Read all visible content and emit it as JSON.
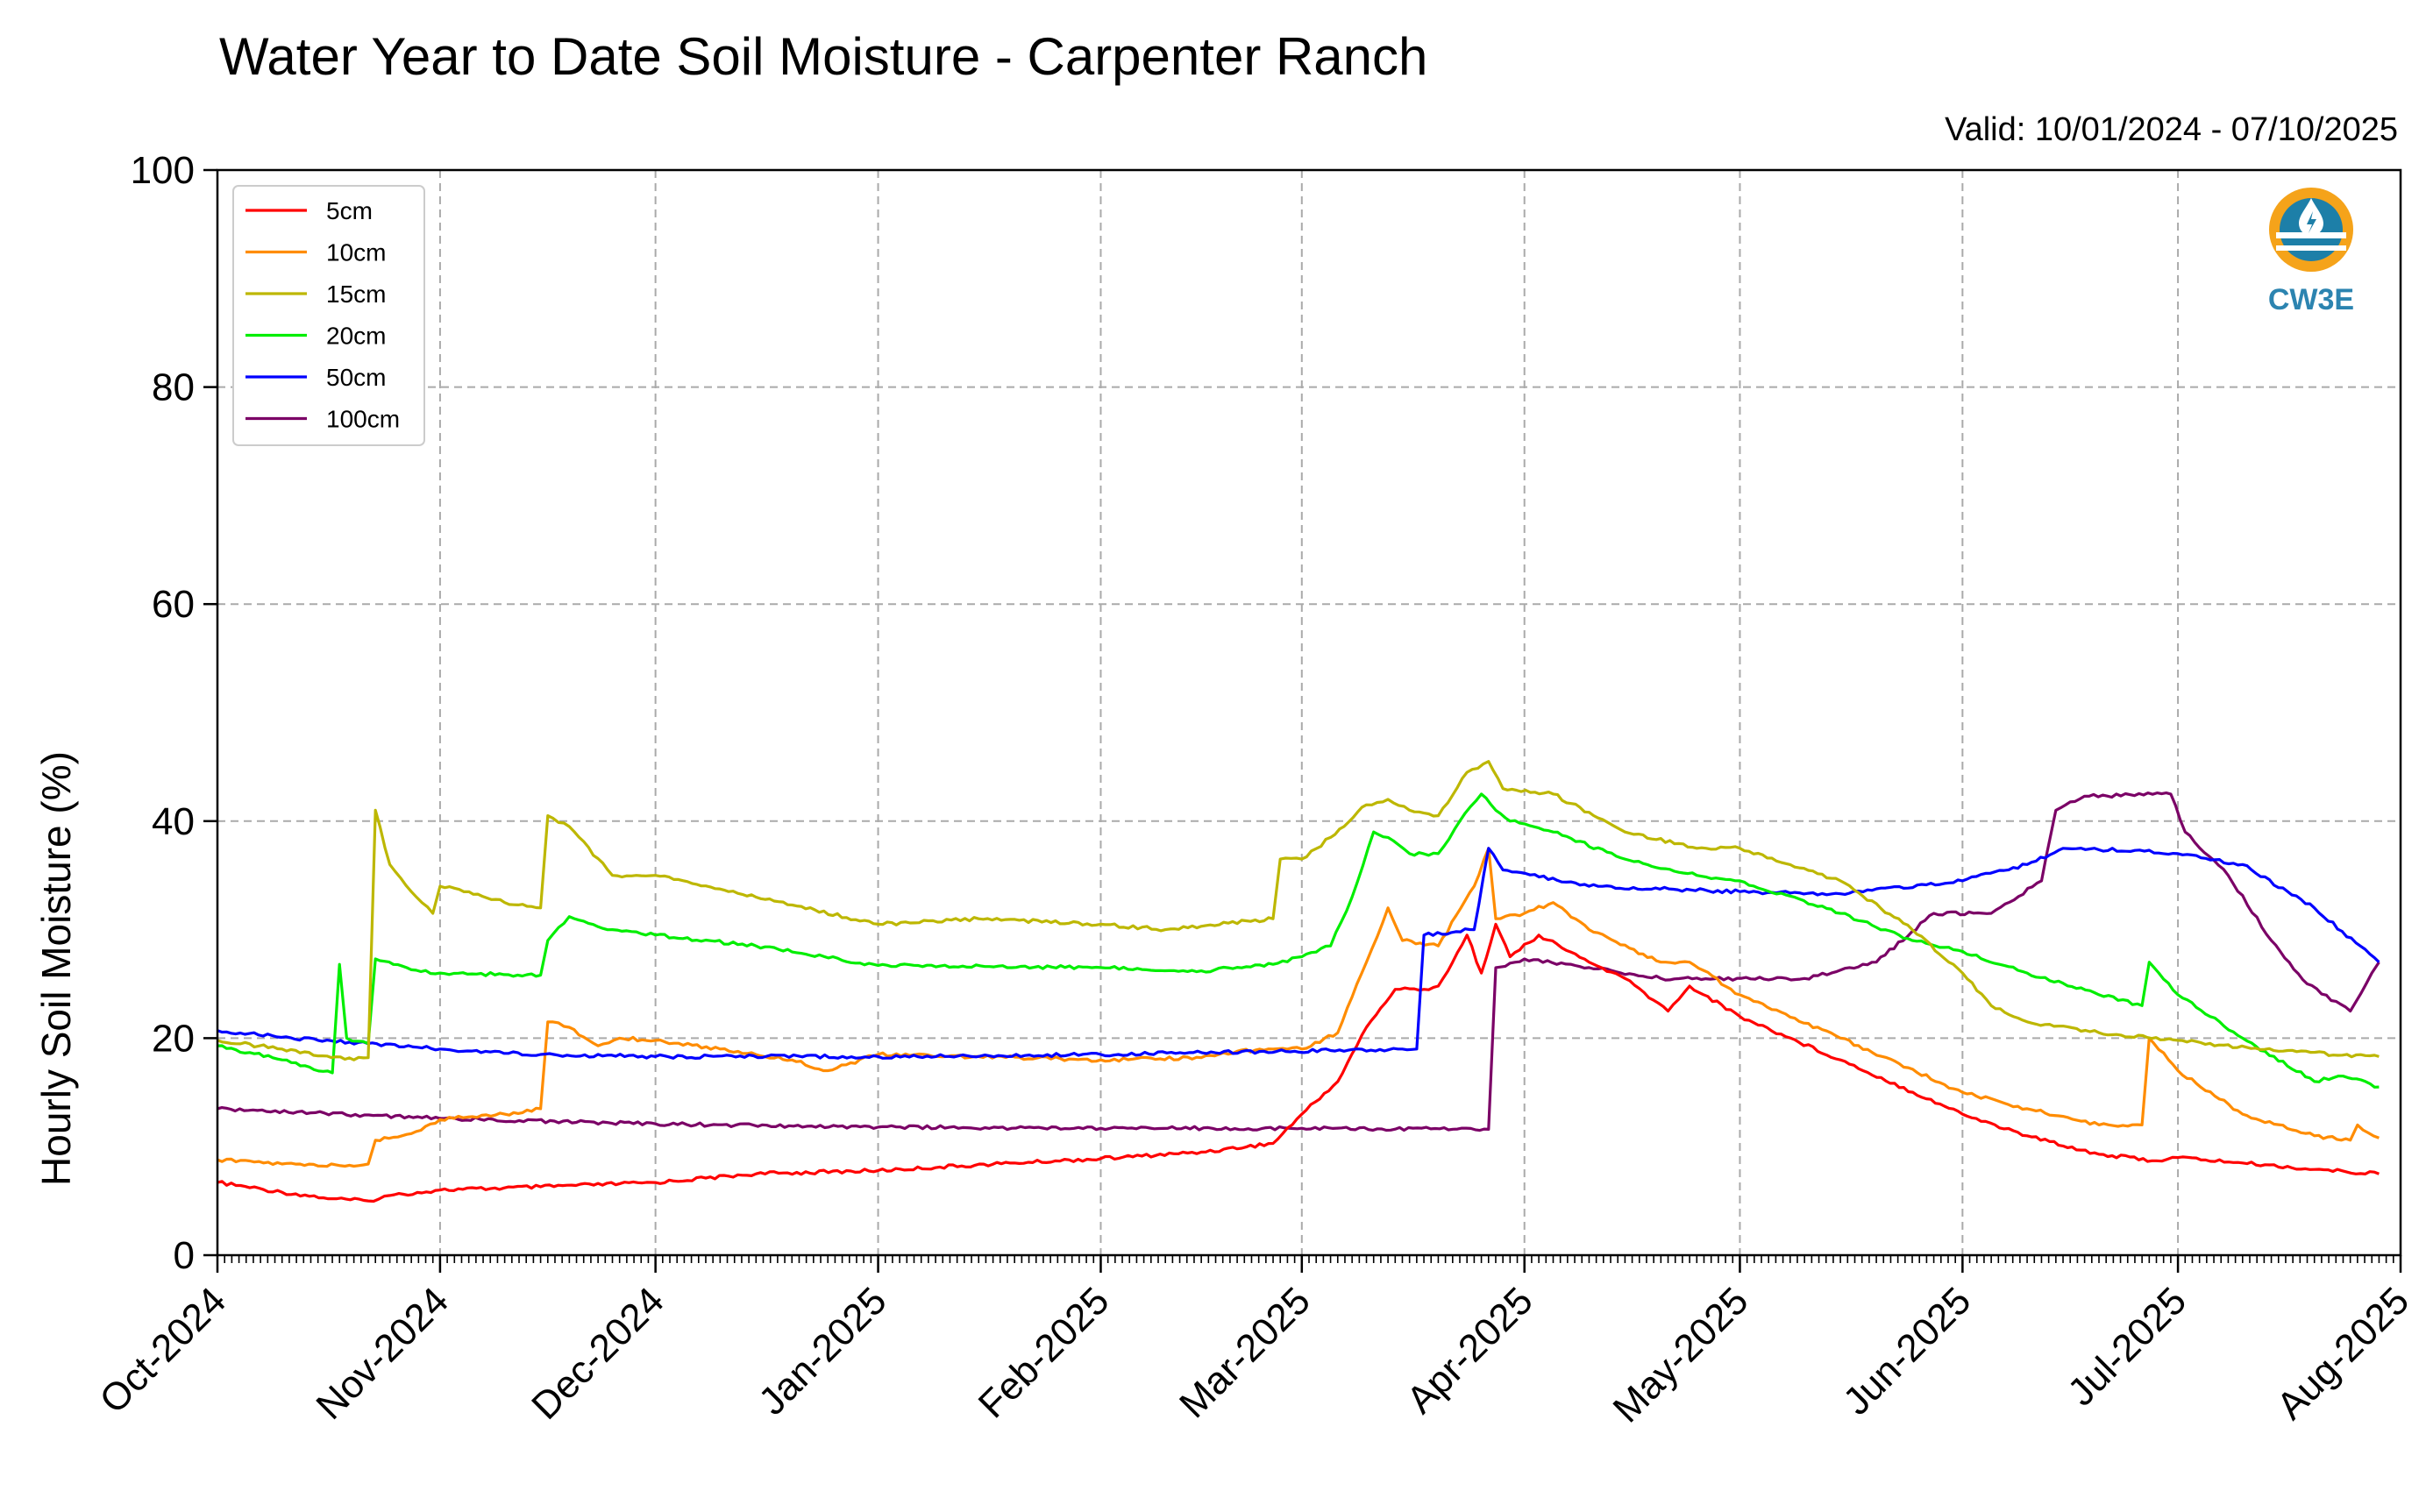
{
  "chart_data": {
    "type": "line",
    "title": "Water Year to Date Soil Moisture - Carpenter Ranch",
    "subtitle": "Valid: 10/01/2024 - 07/10/2025",
    "ylabel": "Hourly Soil Moisture (%)",
    "xlabel": "",
    "ylim": [
      0,
      100
    ],
    "xlim": [
      "2024-10-01",
      "2025-08-01"
    ],
    "yticks": [
      0,
      20,
      40,
      60,
      80,
      100
    ],
    "xticks": [
      {
        "date": "2024-10-01",
        "label": "Oct-2024"
      },
      {
        "date": "2024-11-01",
        "label": "Nov-2024"
      },
      {
        "date": "2024-12-01",
        "label": "Dec-2024"
      },
      {
        "date": "2025-01-01",
        "label": "Jan-2025"
      },
      {
        "date": "2025-02-01",
        "label": "Feb-2025"
      },
      {
        "date": "2025-03-01",
        "label": "Mar-2025"
      },
      {
        "date": "2025-04-01",
        "label": "Apr-2025"
      },
      {
        "date": "2025-05-01",
        "label": "May-2025"
      },
      {
        "date": "2025-06-01",
        "label": "Jun-2025"
      },
      {
        "date": "2025-07-01",
        "label": "Jul-2025"
      },
      {
        "date": "2025-08-01",
        "label": "Aug-2025"
      }
    ],
    "grid": true,
    "legend_position": "top-left",
    "logo_text": "CW3E",
    "series": [
      {
        "name": "5cm",
        "color": "#ff0000",
        "points": [
          [
            "2024-10-01",
            6.7
          ],
          [
            "2024-10-10",
            5.8
          ],
          [
            "2024-10-17",
            5.2
          ],
          [
            "2024-10-22",
            5.0
          ],
          [
            "2024-10-25",
            5.5
          ],
          [
            "2024-11-01",
            6.0
          ],
          [
            "2024-11-15",
            6.3
          ],
          [
            "2024-12-01",
            6.7
          ],
          [
            "2024-12-15",
            7.5
          ],
          [
            "2025-01-01",
            7.8
          ],
          [
            "2025-01-20",
            8.5
          ],
          [
            "2025-02-01",
            8.9
          ],
          [
            "2025-02-15",
            9.5
          ],
          [
            "2025-02-25",
            10.3
          ],
          [
            "2025-03-01",
            13.0
          ],
          [
            "2025-03-06",
            16.0
          ],
          [
            "2025-03-10",
            21.0
          ],
          [
            "2025-03-14",
            24.5
          ],
          [
            "2025-03-18",
            24.5
          ],
          [
            "2025-03-20",
            24.8
          ],
          [
            "2025-03-22",
            27.0
          ],
          [
            "2025-03-24",
            29.5
          ],
          [
            "2025-03-26",
            26.0
          ],
          [
            "2025-03-28",
            30.5
          ],
          [
            "2025-03-30",
            27.5
          ],
          [
            "2025-04-03",
            29.5
          ],
          [
            "2025-04-10",
            27.0
          ],
          [
            "2025-04-15",
            25.5
          ],
          [
            "2025-04-21",
            22.5
          ],
          [
            "2025-04-24",
            24.8
          ],
          [
            "2025-05-01",
            22.0
          ],
          [
            "2025-05-15",
            18.0
          ],
          [
            "2025-06-01",
            13.0
          ],
          [
            "2025-06-10",
            11.0
          ],
          [
            "2025-06-20",
            9.3
          ],
          [
            "2025-06-28",
            8.7
          ],
          [
            "2025-07-01",
            9.0
          ],
          [
            "2025-07-10",
            8.5
          ],
          [
            "2025-07-20",
            7.9
          ],
          [
            "2025-07-29",
            7.5
          ]
        ]
      },
      {
        "name": "10cm",
        "color": "#ff8c00",
        "points": [
          [
            "2024-10-01",
            8.8
          ],
          [
            "2024-10-10",
            8.4
          ],
          [
            "2024-10-20",
            8.2
          ],
          [
            "2024-10-22",
            8.4
          ],
          [
            "2024-10-23",
            10.6
          ],
          [
            "2024-10-28",
            11.2
          ],
          [
            "2024-11-01",
            12.5
          ],
          [
            "2024-11-10",
            13.0
          ],
          [
            "2024-11-15",
            13.5
          ],
          [
            "2024-11-16",
            21.5
          ],
          [
            "2024-11-19",
            21.0
          ],
          [
            "2024-11-23",
            19.3
          ],
          [
            "2024-11-26",
            20.0
          ],
          [
            "2024-12-01",
            19.8
          ],
          [
            "2024-12-10",
            19.0
          ],
          [
            "2024-12-20",
            18.0
          ],
          [
            "2024-12-25",
            17.0
          ],
          [
            "2025-01-01",
            18.5
          ],
          [
            "2025-01-15",
            18.3
          ],
          [
            "2025-02-01",
            18.0
          ],
          [
            "2025-02-15",
            18.2
          ],
          [
            "2025-02-20",
            18.8
          ],
          [
            "2025-02-25",
            19.0
          ],
          [
            "2025-03-01",
            19.0
          ],
          [
            "2025-03-06",
            20.5
          ],
          [
            "2025-03-10",
            27.0
          ],
          [
            "2025-03-13",
            32.0
          ],
          [
            "2025-03-15",
            29.0
          ],
          [
            "2025-03-20",
            28.5
          ],
          [
            "2025-03-25",
            34.0
          ],
          [
            "2025-03-27",
            37.5
          ],
          [
            "2025-03-28",
            31.0
          ],
          [
            "2025-04-01",
            31.5
          ],
          [
            "2025-04-05",
            32.5
          ],
          [
            "2025-04-10",
            30.0
          ],
          [
            "2025-04-20",
            27.0
          ],
          [
            "2025-04-24",
            27.0
          ],
          [
            "2025-05-01",
            24.0
          ],
          [
            "2025-05-15",
            20.0
          ],
          [
            "2025-06-01",
            15.0
          ],
          [
            "2025-06-10",
            13.5
          ],
          [
            "2025-06-20",
            12.0
          ],
          [
            "2025-06-26",
            12.0
          ],
          [
            "2025-06-27",
            20.0
          ],
          [
            "2025-07-01",
            17.0
          ],
          [
            "2025-07-10",
            13.0
          ],
          [
            "2025-07-20",
            11.0
          ],
          [
            "2025-07-25",
            10.6
          ],
          [
            "2025-07-26",
            12.0
          ],
          [
            "2025-07-29",
            10.8
          ]
        ]
      },
      {
        "name": "15cm",
        "color": "#bdb700",
        "points": [
          [
            "2024-10-01",
            19.8
          ],
          [
            "2024-10-10",
            19.0
          ],
          [
            "2024-10-20",
            18.0
          ],
          [
            "2024-10-22",
            18.2
          ],
          [
            "2024-10-23",
            41.0
          ],
          [
            "2024-10-25",
            36.0
          ],
          [
            "2024-10-28",
            33.5
          ],
          [
            "2024-10-31",
            31.5
          ],
          [
            "2024-11-01",
            34.0
          ],
          [
            "2024-11-05",
            33.5
          ],
          [
            "2024-11-10",
            32.5
          ],
          [
            "2024-11-15",
            32.0
          ],
          [
            "2024-11-16",
            40.5
          ],
          [
            "2024-11-19",
            39.5
          ],
          [
            "2024-11-25",
            35.0
          ],
          [
            "2024-12-01",
            35.0
          ],
          [
            "2024-12-15",
            33.0
          ],
          [
            "2025-01-01",
            30.5
          ],
          [
            "2025-01-15",
            31.0
          ],
          [
            "2025-02-01",
            30.5
          ],
          [
            "2025-02-10",
            30.0
          ],
          [
            "2025-02-25",
            31.0
          ],
          [
            "2025-02-26",
            36.5
          ],
          [
            "2025-03-01",
            36.5
          ],
          [
            "2025-03-05",
            38.5
          ],
          [
            "2025-03-10",
            41.5
          ],
          [
            "2025-03-13",
            42.0
          ],
          [
            "2025-03-16",
            41.0
          ],
          [
            "2025-03-20",
            40.5
          ],
          [
            "2025-03-24",
            44.5
          ],
          [
            "2025-03-27",
            45.5
          ],
          [
            "2025-03-29",
            43.0
          ],
          [
            "2025-04-05",
            42.5
          ],
          [
            "2025-04-15",
            39.0
          ],
          [
            "2025-04-25",
            37.5
          ],
          [
            "2025-05-01",
            37.5
          ],
          [
            "2025-05-15",
            34.5
          ],
          [
            "2025-05-25",
            30.0
          ],
          [
            "2025-06-01",
            26.0
          ],
          [
            "2025-06-05",
            23.0
          ],
          [
            "2025-06-10",
            21.5
          ],
          [
            "2025-06-20",
            20.5
          ],
          [
            "2025-07-01",
            19.8
          ],
          [
            "2025-07-15",
            18.8
          ],
          [
            "2025-07-29",
            18.3
          ]
        ]
      },
      {
        "name": "20cm",
        "color": "#00ee00",
        "points": [
          [
            "2024-10-01",
            19.3
          ],
          [
            "2024-10-10",
            18.0
          ],
          [
            "2024-10-17",
            16.8
          ],
          [
            "2024-10-18",
            26.8
          ],
          [
            "2024-10-19",
            20.0
          ],
          [
            "2024-10-22",
            19.5
          ],
          [
            "2024-10-23",
            27.3
          ],
          [
            "2024-10-28",
            26.3
          ],
          [
            "2024-11-01",
            26.0
          ],
          [
            "2024-11-15",
            25.8
          ],
          [
            "2024-11-16",
            29.0
          ],
          [
            "2024-11-19",
            31.2
          ],
          [
            "2024-11-25",
            30.0
          ],
          [
            "2024-12-01",
            29.5
          ],
          [
            "2024-12-15",
            28.5
          ],
          [
            "2025-01-01",
            26.7
          ],
          [
            "2025-02-01",
            26.5
          ],
          [
            "2025-02-15",
            26.2
          ],
          [
            "2025-02-25",
            26.8
          ],
          [
            "2025-03-01",
            27.5
          ],
          [
            "2025-03-05",
            28.5
          ],
          [
            "2025-03-08",
            33.0
          ],
          [
            "2025-03-11",
            39.0
          ],
          [
            "2025-03-13",
            38.5
          ],
          [
            "2025-03-16",
            37.0
          ],
          [
            "2025-03-20",
            37.0
          ],
          [
            "2025-03-23",
            40.0
          ],
          [
            "2025-03-26",
            42.5
          ],
          [
            "2025-03-28",
            41.0
          ],
          [
            "2025-03-30",
            40.0
          ],
          [
            "2025-04-05",
            39.0
          ],
          [
            "2025-04-15",
            36.5
          ],
          [
            "2025-04-25",
            35.0
          ],
          [
            "2025-05-01",
            34.5
          ],
          [
            "2025-05-15",
            31.5
          ],
          [
            "2025-05-25",
            29.0
          ],
          [
            "2025-06-01",
            28.0
          ],
          [
            "2025-06-10",
            26.0
          ],
          [
            "2025-06-20",
            24.0
          ],
          [
            "2025-06-26",
            23.0
          ],
          [
            "2025-06-27",
            27.0
          ],
          [
            "2025-07-01",
            24.0
          ],
          [
            "2025-07-10",
            20.0
          ],
          [
            "2025-07-20",
            16.0
          ],
          [
            "2025-07-24",
            16.5
          ],
          [
            "2025-07-29",
            15.5
          ]
        ]
      },
      {
        "name": "50cm",
        "color": "#0000ff",
        "points": [
          [
            "2024-10-01",
            20.7
          ],
          [
            "2024-10-15",
            19.8
          ],
          [
            "2024-11-01",
            19.0
          ],
          [
            "2024-11-15",
            18.5
          ],
          [
            "2024-12-01",
            18.3
          ],
          [
            "2025-01-01",
            18.3
          ],
          [
            "2025-02-01",
            18.5
          ],
          [
            "2025-02-28",
            18.8
          ],
          [
            "2025-03-15",
            19.0
          ],
          [
            "2025-03-17",
            19.0
          ],
          [
            "2025-03-18",
            29.5
          ],
          [
            "2025-03-25",
            30.0
          ],
          [
            "2025-03-27",
            37.5
          ],
          [
            "2025-03-29",
            35.5
          ],
          [
            "2025-04-10",
            34.0
          ],
          [
            "2025-05-01",
            33.5
          ],
          [
            "2025-05-15",
            33.3
          ],
          [
            "2025-06-01",
            34.5
          ],
          [
            "2025-06-10",
            36.0
          ],
          [
            "2025-06-15",
            37.5
          ],
          [
            "2025-06-25",
            37.3
          ],
          [
            "2025-07-01",
            37.0
          ],
          [
            "2025-07-10",
            36.0
          ],
          [
            "2025-07-20",
            32.0
          ],
          [
            "2025-07-29",
            27.0
          ]
        ]
      },
      {
        "name": "100cm",
        "color": "#7b0066",
        "points": [
          [
            "2024-10-01",
            13.5
          ],
          [
            "2024-11-01",
            12.6
          ],
          [
            "2024-12-01",
            12.1
          ],
          [
            "2025-01-01",
            11.8
          ],
          [
            "2025-02-01",
            11.7
          ],
          [
            "2025-03-01",
            11.7
          ],
          [
            "2025-03-27",
            11.6
          ],
          [
            "2025-03-28",
            26.5
          ],
          [
            "2025-04-01",
            27.3
          ],
          [
            "2025-04-10",
            26.5
          ],
          [
            "2025-04-20",
            25.5
          ],
          [
            "2025-05-10",
            25.5
          ],
          [
            "2025-05-20",
            27.0
          ],
          [
            "2025-05-28",
            31.5
          ],
          [
            "2025-06-05",
            31.5
          ],
          [
            "2025-06-12",
            34.5
          ],
          [
            "2025-06-14",
            41.0
          ],
          [
            "2025-06-18",
            42.3
          ],
          [
            "2025-06-30",
            42.5
          ],
          [
            "2025-07-02",
            39.0
          ],
          [
            "2025-07-08",
            35.0
          ],
          [
            "2025-07-14",
            29.0
          ],
          [
            "2025-07-19",
            25.0
          ],
          [
            "2025-07-25",
            22.5
          ],
          [
            "2025-07-28",
            26.0
          ],
          [
            "2025-07-29",
            27.0
          ]
        ]
      }
    ]
  }
}
